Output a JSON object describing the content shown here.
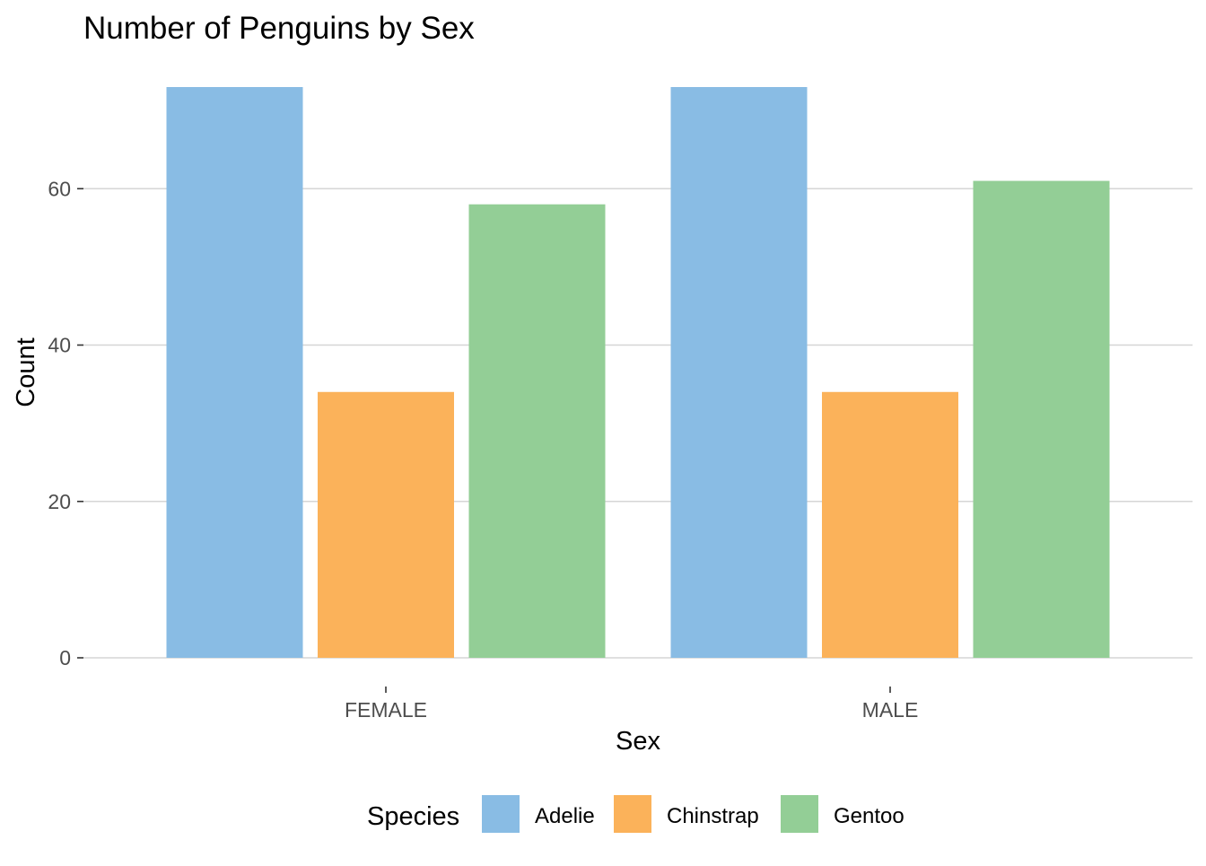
{
  "chart_data": {
    "type": "bar",
    "title": "Number of Penguins by Sex",
    "xlabel": "Sex",
    "ylabel": "Count",
    "categories": [
      "FEMALE",
      "MALE"
    ],
    "series": [
      {
        "name": "Adelie",
        "values": [
          73,
          73
        ],
        "color": "#89BCE4"
      },
      {
        "name": "Chinstrap",
        "values": [
          34,
          34
        ],
        "color": "#FBB25A"
      },
      {
        "name": "Gentoo",
        "values": [
          58,
          61
        ],
        "color": "#93CE96"
      }
    ],
    "ylim": [
      0,
      73
    ],
    "yticks": [
      0,
      20,
      40,
      60
    ],
    "grid": true,
    "legend": {
      "title": "Species",
      "position": "bottom"
    }
  }
}
